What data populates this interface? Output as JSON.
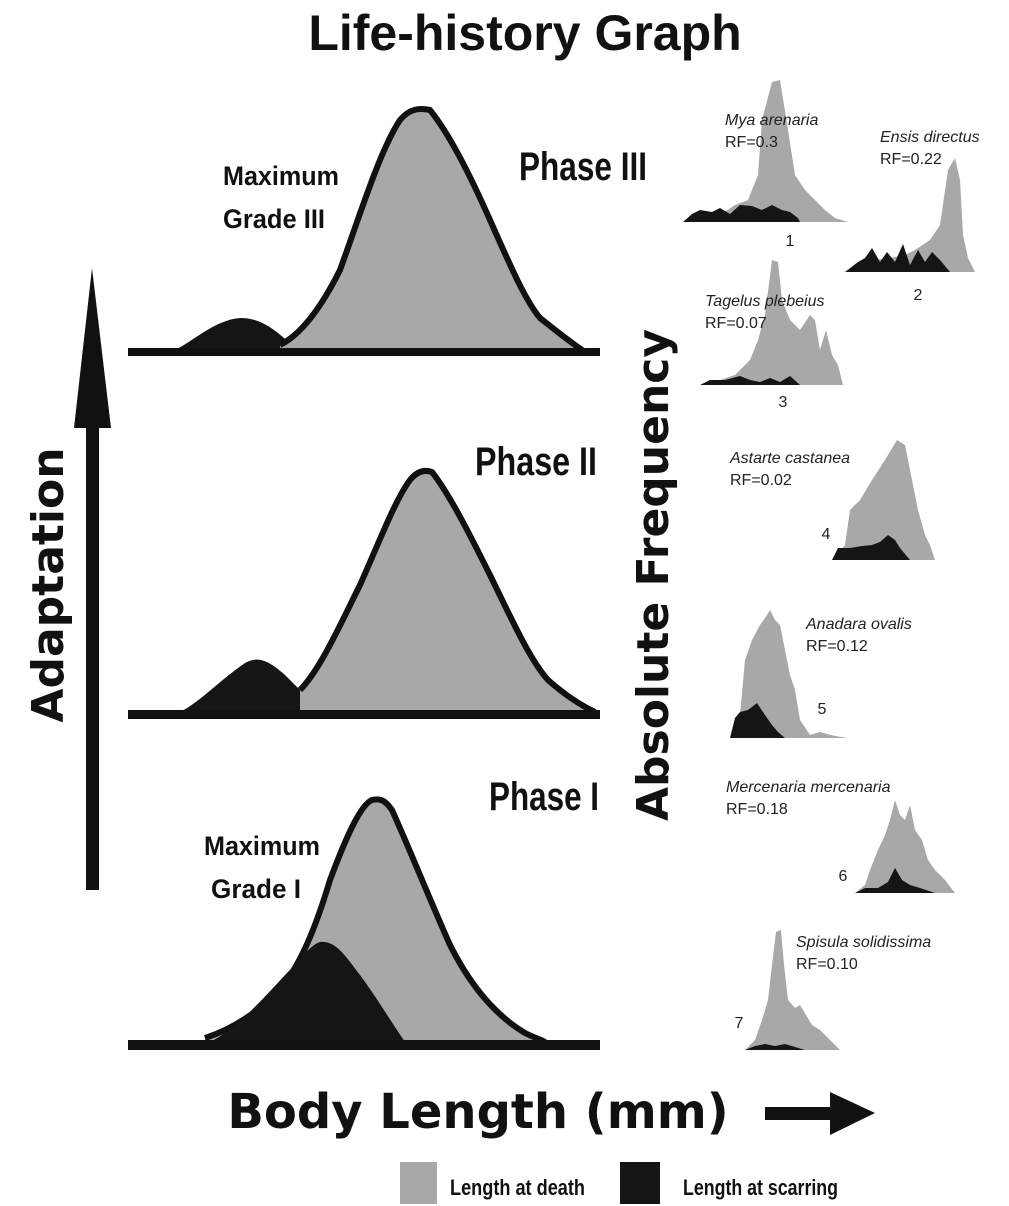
{
  "title": "Life-history Graph",
  "y_axis_label": "Adaptation",
  "x_axis_label": "Body Length (mm)",
  "secondary_axis_label": "Absolute Frequency",
  "phases": [
    {
      "label": "Phase III",
      "annotation_line1": "Maximum",
      "annotation_line2": "Grade III"
    },
    {
      "label": "Phase II"
    },
    {
      "label": "Phase I",
      "annotation_line1": "Maximum",
      "annotation_line2": "Grade I"
    }
  ],
  "species": [
    {
      "number": "1",
      "name": "Mya arenaria",
      "rf": "RF=0.3"
    },
    {
      "number": "2",
      "name": "Ensis directus",
      "rf": "RF=0.22"
    },
    {
      "number": "3",
      "name": "Tagelus plebeius",
      "rf": "RF=0.07"
    },
    {
      "number": "4",
      "name": "Astarte castanea",
      "rf": "RF=0.02"
    },
    {
      "number": "5",
      "name": "Anadara ovalis",
      "rf": "RF=0.12"
    },
    {
      "number": "6",
      "name": "Mercenaria mercenaria",
      "rf": "RF=0.18"
    },
    {
      "number": "7",
      "name": "Spisula solidissima",
      "rf": "RF=0.10"
    }
  ],
  "legend": {
    "death_label": "Length at death",
    "scar_label": "Length at scarring",
    "death_color": "#a8a8a8",
    "scar_color": "#151515"
  }
}
